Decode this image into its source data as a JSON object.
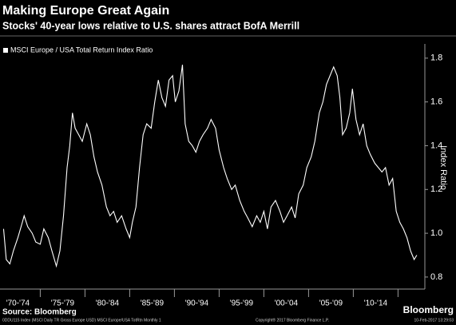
{
  "chart_data": {
    "type": "line",
    "title": "Making Europe Great Again",
    "subtitle": "Stocks' 40-year lows relative to U.S. shares attract BofA Merrill",
    "y_axis_label": "Index Ratio",
    "source": "Source: Bloomberg",
    "brand": "Bloomberg",
    "footnote": "0DDU115 Index (MSCI Daily TR Gross Europe USD) MSCI Europe/USA TotRtn  Monthly 1",
    "copyright": "Copyright® 2017 Bloomberg Finance L.P.",
    "timestamp": "10-Feb-2017 13:29:03",
    "categories": [
      "'70-'74",
      "'75-'79",
      "'80-'84",
      "'85-'89",
      "'90-'94",
      "'95-'99",
      "'00-'04",
      "'05-'09",
      "'10-'14"
    ],
    "xlim": [
      1970.5,
      2018
    ],
    "xticks": [
      1975,
      1980,
      1985,
      1990,
      1995,
      2000,
      2005,
      2010,
      2015
    ],
    "ylim": [
      0.745,
      1.865
    ],
    "yticks": [
      0.8,
      {
        "value": 1,
        "label": "1.0"
      },
      1.2,
      1.4,
      1.6,
      1.8
    ],
    "grid": false,
    "legend": "top-left",
    "x": [
      1970.9,
      1971.2,
      1971.6,
      1972.0,
      1972.5,
      1973.0,
      1973.2,
      1973.6,
      1974.1,
      1974.5,
      1975.0,
      1975.4,
      1975.9,
      1976.3,
      1976.8,
      1977.2,
      1977.6,
      1978.0,
      1978.3,
      1978.6,
      1978.9,
      1979.3,
      1979.7,
      1980.2,
      1980.6,
      1981.0,
      1981.4,
      1981.9,
      1982.4,
      1982.8,
      1983.2,
      1983.6,
      1984.1,
      1984.6,
      1985.0,
      1985.3,
      1985.7,
      1986.1,
      1986.5,
      1986.9,
      1987.4,
      1987.8,
      1988.2,
      1988.6,
      1989.0,
      1989.4,
      1989.8,
      1990.1,
      1990.5,
      1990.9,
      1991.2,
      1991.6,
      1992.0,
      1992.4,
      1992.8,
      1993.2,
      1993.7,
      1994.1,
      1994.6,
      1995.0,
      1995.5,
      1995.9,
      1996.4,
      1996.8,
      1997.3,
      1997.8,
      1998.2,
      1998.7,
      1999.2,
      1999.6,
      2000.0,
      2000.4,
      2000.8,
      2001.3,
      2001.8,
      2002.2,
      2002.6,
      2003.1,
      2003.5,
      2003.9,
      2004.4,
      2004.8,
      2005.3,
      2005.7,
      2006.2,
      2006.6,
      2007.0,
      2007.4,
      2007.8,
      2008.2,
      2008.5,
      2008.8,
      2009.2,
      2009.6,
      2009.9,
      2010.3,
      2010.7,
      2011.1,
      2011.5,
      2011.9,
      2012.4,
      2012.8,
      2013.2,
      2013.6,
      2014.0,
      2014.4,
      2014.8,
      2015.2,
      2015.6,
      2016.0,
      2016.4,
      2016.8,
      2017.1
    ],
    "series": [
      {
        "name": "MSCI Europe / USA Total Return Index Ratio",
        "color": "#ffffff",
        "values": [
          1.02,
          0.88,
          0.86,
          0.92,
          0.98,
          1.05,
          1.08,
          1.03,
          1.0,
          0.96,
          0.95,
          1.02,
          0.98,
          0.92,
          0.85,
          0.92,
          1.08,
          1.3,
          1.4,
          1.55,
          1.48,
          1.45,
          1.42,
          1.5,
          1.45,
          1.35,
          1.28,
          1.22,
          1.12,
          1.08,
          1.1,
          1.05,
          1.08,
          1.02,
          0.98,
          1.05,
          1.12,
          1.3,
          1.45,
          1.5,
          1.48,
          1.6,
          1.7,
          1.62,
          1.58,
          1.7,
          1.72,
          1.6,
          1.65,
          1.77,
          1.5,
          1.42,
          1.4,
          1.37,
          1.42,
          1.45,
          1.48,
          1.52,
          1.48,
          1.38,
          1.3,
          1.25,
          1.2,
          1.22,
          1.15,
          1.1,
          1.07,
          1.03,
          1.08,
          1.05,
          1.1,
          1.02,
          1.12,
          1.15,
          1.1,
          1.05,
          1.08,
          1.12,
          1.07,
          1.18,
          1.22,
          1.3,
          1.35,
          1.42,
          1.55,
          1.6,
          1.68,
          1.72,
          1.76,
          1.72,
          1.62,
          1.45,
          1.48,
          1.55,
          1.66,
          1.52,
          1.45,
          1.5,
          1.4,
          1.36,
          1.32,
          1.3,
          1.28,
          1.3,
          1.22,
          1.25,
          1.1,
          1.05,
          1.02,
          0.98,
          0.92,
          0.88,
          0.9
        ]
      }
    ]
  }
}
